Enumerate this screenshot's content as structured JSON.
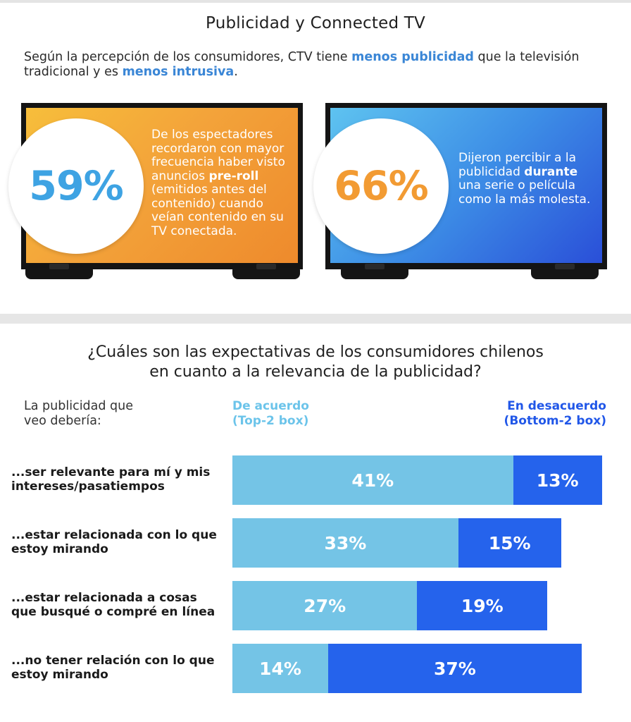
{
  "section1": {
    "title": "Publicidad y Connected TV",
    "intro": {
      "part1": "Según la percepción de los consumidores, CTV tiene ",
      "hl1": "menos publicidad",
      "part2": " que la televisión tradicional y es ",
      "hl2": "menos intrusiva",
      "part3": "."
    },
    "tv1": {
      "stat": "59%",
      "text_a": "De los espectadores recordaron con mayor frecuencia haber visto anuncios ",
      "text_bold": "pre-roll",
      "text_b": " (emitidos antes del contenido) cuando veían contenido en su TV conectada."
    },
    "tv2": {
      "stat": "66%",
      "text_a": "Dijeron percibir a la publicidad ",
      "text_bold": "durante",
      "text_b": " una serie o película como la más molesta."
    }
  },
  "section2": {
    "title_line1": "¿Cuáles son las expectativas de los consumidores chilenos",
    "title_line2": "en cuanto a la relevancia de la publicidad?",
    "lead_line1": "La publicidad que",
    "lead_line2": "veo debería:",
    "agree_line1": "De acuerdo",
    "agree_line2": "(Top-2 box)",
    "disagree_line1": "En desacuerdo",
    "disagree_line2": "(Bottom-2 box)"
  },
  "colors": {
    "agree": "#74c4e6",
    "disagree": "#2563ec",
    "accent_orange": "#f29b33",
    "accent_blue": "#3ea3e3"
  },
  "chart_data": {
    "type": "bar",
    "orientation": "horizontal-stacked",
    "categories": [
      "...ser relevante para mí y mis intereses/pasatiempos",
      "...estar relacionada con lo que estoy mirando",
      "...estar relacionada a cosas que busqué o compré en línea",
      "...no tener relación con lo que estoy mirando"
    ],
    "category_lines": [
      [
        "...ser relevante para mí y mis",
        "intereses/pasatiempos"
      ],
      [
        "...estar relacionada con lo que",
        "estoy mirando"
      ],
      [
        "...estar relacionada a cosas",
        "que busqué o compré en línea"
      ],
      [
        "...no tener relación con lo que",
        "estoy mirando"
      ]
    ],
    "series": [
      {
        "name": "De acuerdo (Top-2 box)",
        "values": [
          41,
          33,
          27,
          14
        ],
        "labels": [
          "41%",
          "33%",
          "27%",
          "14%"
        ]
      },
      {
        "name": "En desacuerdo (Bottom-2 box)",
        "values": [
          13,
          15,
          19,
          37
        ],
        "labels": [
          "13%",
          "15%",
          "19%",
          "37%"
        ]
      }
    ],
    "unit": "%"
  }
}
